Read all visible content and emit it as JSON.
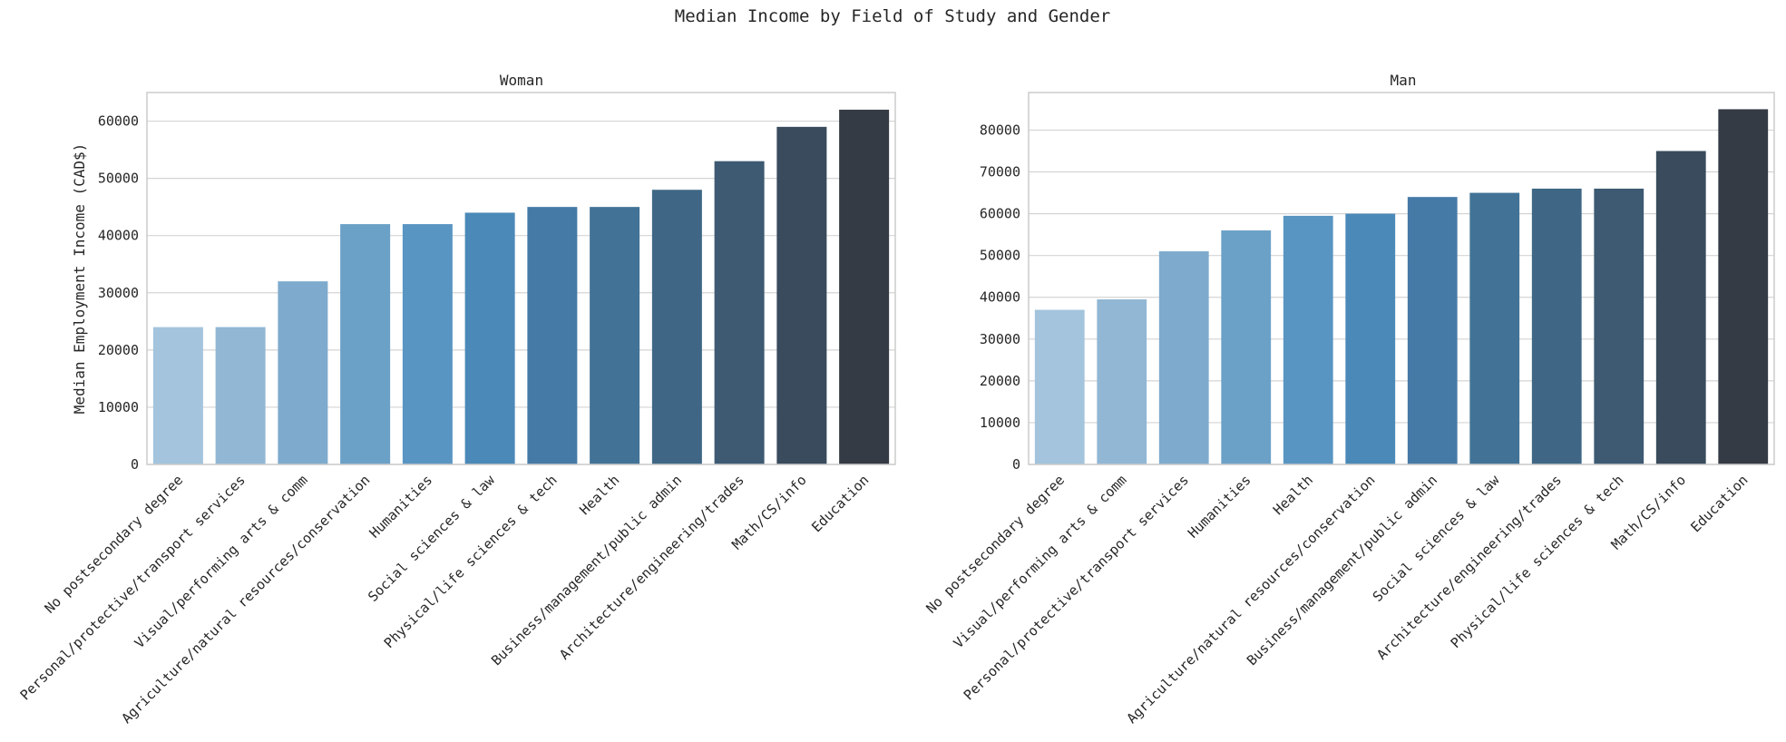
{
  "figure_title": "Median Income by Field of Study and Gender",
  "chart_data": [
    {
      "type": "bar",
      "title": "Woman",
      "xlabel": "",
      "ylabel": "Median Employment Income (CAD$)",
      "ylim": [
        0,
        65000
      ],
      "yticks": [
        0,
        10000,
        20000,
        30000,
        40000,
        50000,
        60000
      ],
      "grid": true,
      "categories": [
        "No postsecondary degree",
        "Personal/protective/transport services",
        "Visual/performing arts & comm",
        "Agriculture/natural resources/conservation",
        "Humanities",
        "Social sciences & law",
        "Physical/life sciences & tech",
        "Health",
        "Business/management/public admin",
        "Architecture/engineering/trades",
        "Math/CS/info",
        "Education"
      ],
      "values": [
        24000,
        24000,
        32000,
        42000,
        42000,
        44000,
        45000,
        45000,
        48000,
        53000,
        59000,
        62000
      ],
      "colors": [
        "#a3c4dc",
        "#91b7d4",
        "#7eabcd",
        "#6ba1c7",
        "#5995c2",
        "#4b89b8",
        "#457aa6",
        "#427397",
        "#3f6785",
        "#3d5a72",
        "#394b5c",
        "#353b44"
      ]
    },
    {
      "type": "bar",
      "title": "Man",
      "xlabel": "",
      "ylabel": "",
      "ylim": [
        0,
        89000
      ],
      "yticks": [
        0,
        10000,
        20000,
        30000,
        40000,
        50000,
        60000,
        70000,
        80000
      ],
      "grid": true,
      "categories": [
        "No postsecondary degree",
        "Visual/performing arts & comm",
        "Personal/protective/transport services",
        "Humanities",
        "Health",
        "Agriculture/natural resources/conservation",
        "Business/management/public admin",
        "Social sciences & law",
        "Architecture/engineering/trades",
        "Physical/life sciences & tech",
        "Math/CS/info",
        "Education"
      ],
      "values": [
        37000,
        39500,
        51000,
        56000,
        59500,
        60000,
        64000,
        65000,
        66000,
        66000,
        75000,
        85000
      ],
      "colors": [
        "#a3c4dc",
        "#91b7d4",
        "#7eabcd",
        "#6ba1c7",
        "#5995c2",
        "#4b89b8",
        "#457aa6",
        "#427397",
        "#3f6785",
        "#3d5a72",
        "#394b5c",
        "#353b44"
      ]
    }
  ]
}
